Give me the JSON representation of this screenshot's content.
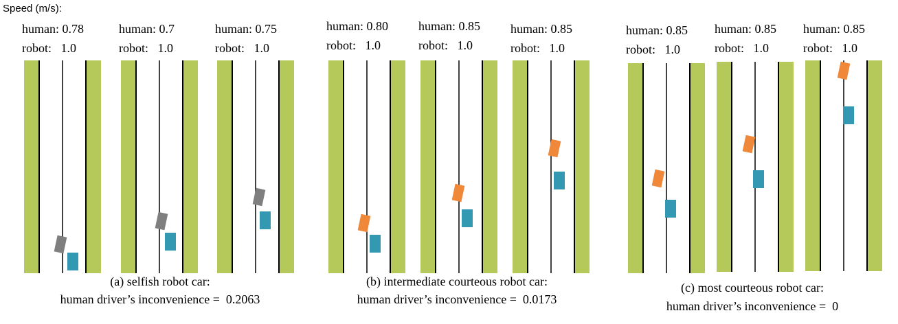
{
  "header": {
    "title": "Speed (m/s):"
  },
  "panels": [
    {
      "roads": [
        {
          "human": "human: 0.78",
          "robot": "robot:   1.0"
        },
        {
          "human": "human: 0.7",
          "robot": "robot:   1.0"
        },
        {
          "human": "human: 0.75",
          "robot": "robot:   1.0"
        }
      ],
      "caption": "(a) selfish robot car:",
      "subcaption": "human driver’s inconvenience =  0.2063"
    },
    {
      "roads": [
        {
          "human": "human: 0.80",
          "robot": "robot:   1.0"
        },
        {
          "human": "human: 0.85",
          "robot": "robot:   1.0"
        },
        {
          "human": "human: 0.85",
          "robot": "robot:   1.0"
        }
      ],
      "caption": "(b) intermediate courteous robot car:",
      "subcaption": "human driver’s inconvenience =  0.0173"
    },
    {
      "roads": [
        {
          "human": "human: 0.85",
          "robot": "robot:   1.0"
        },
        {
          "human": "human: 0.85",
          "robot": "robot:   1.0"
        },
        {
          "human": "human: 0.85",
          "robot": "robot:   1.0"
        }
      ],
      "caption": "(c) most courteous robot car:",
      "subcaption": "human driver’s inconvenience =  0"
    }
  ]
}
